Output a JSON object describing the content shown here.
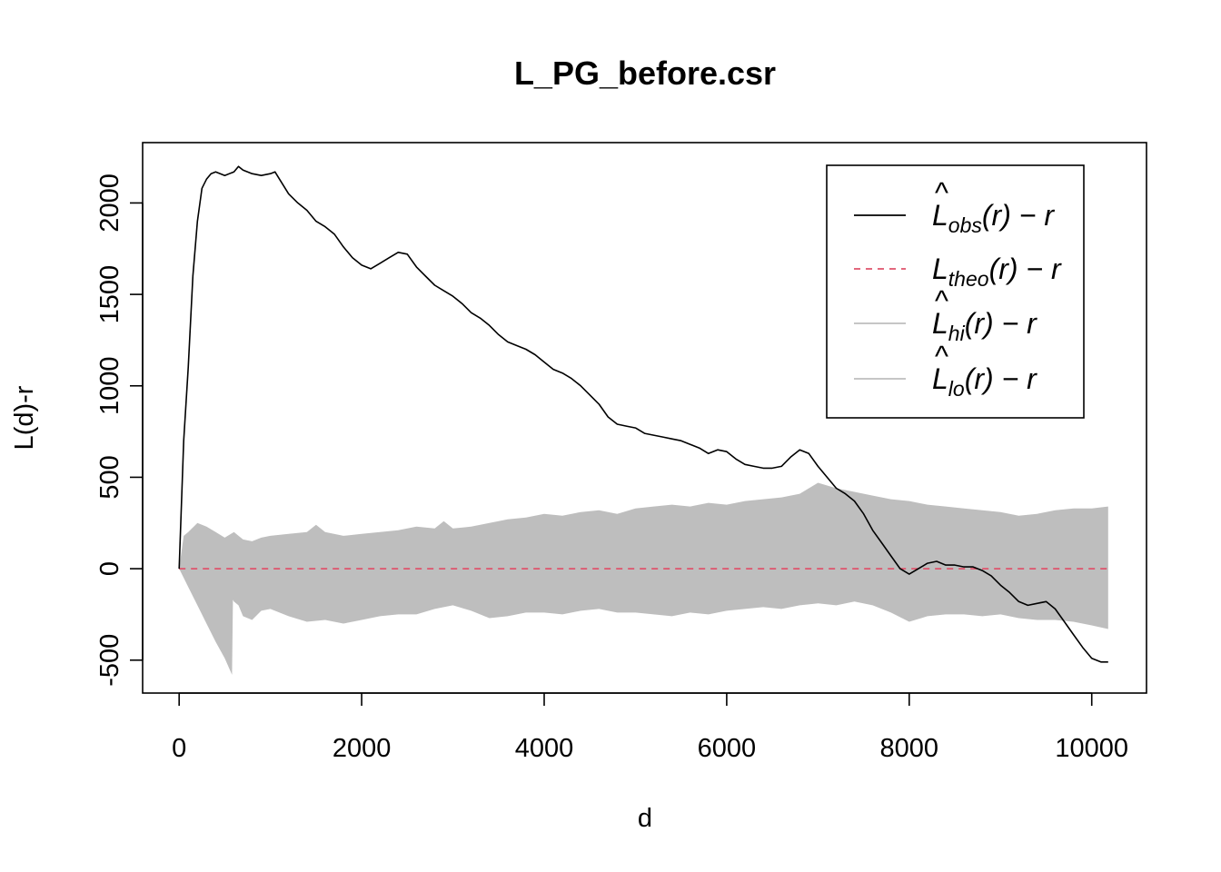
{
  "chart_data": {
    "type": "line",
    "title": "L_PG_before.csr",
    "xlabel": "d",
    "ylabel": "L(d)-r",
    "xlim": [
      -400,
      10600
    ],
    "ylim": [
      -680,
      2330
    ],
    "xticks": [
      0,
      2000,
      4000,
      6000,
      8000,
      10000
    ],
    "xtick_labels": [
      "0",
      "2000",
      "4000",
      "6000",
      "8000",
      "10000"
    ],
    "yticks": [
      -500,
      0,
      500,
      1000,
      1500,
      2000
    ],
    "ytick_labels": [
      "-500",
      "0",
      "500",
      "1000",
      "1500",
      "2000"
    ],
    "grid": false,
    "legend_position": "top-right",
    "legend": [
      {
        "key": "obs",
        "text": "L̂obs(r) − r",
        "color": "#000000",
        "style": "solid"
      },
      {
        "key": "theo",
        "text": "Ltheo(r) − r",
        "color": "#DF536B",
        "style": "dashed"
      },
      {
        "key": "hi",
        "text": "L̂hi(r) − r",
        "color": "#BEBEBE",
        "style": "solid"
      },
      {
        "key": "lo",
        "text": "L̂lo(r) − r",
        "color": "#BEBEBE",
        "style": "solid"
      }
    ],
    "series": [
      {
        "key": "obs",
        "color": "#000000",
        "x": [
          0,
          50,
          100,
          150,
          200,
          250,
          300,
          350,
          400,
          500,
          600,
          650,
          700,
          800,
          900,
          1000,
          1050,
          1100,
          1200,
          1300,
          1400,
          1500,
          1600,
          1700,
          1800,
          1900,
          2000,
          2100,
          2200,
          2300,
          2400,
          2500,
          2600,
          2700,
          2800,
          2900,
          3000,
          3100,
          3200,
          3300,
          3400,
          3500,
          3600,
          3700,
          3800,
          3900,
          4000,
          4100,
          4200,
          4300,
          4400,
          4500,
          4600,
          4700,
          4800,
          4900,
          5000,
          5100,
          5200,
          5300,
          5400,
          5500,
          5600,
          5700,
          5800,
          5900,
          6000,
          6100,
          6200,
          6300,
          6400,
          6500,
          6600,
          6700,
          6800,
          6900,
          7000,
          7100,
          7200,
          7300,
          7400,
          7500,
          7600,
          7700,
          7800,
          7900,
          8000,
          8100,
          8200,
          8300,
          8400,
          8500,
          8600,
          8700,
          8800,
          8900,
          9000,
          9100,
          9200,
          9300,
          9400,
          9500,
          9600,
          9700,
          9800,
          9900,
          10000,
          10100,
          10180
        ],
        "y": [
          0,
          700,
          1100,
          1600,
          1900,
          2080,
          2130,
          2160,
          2170,
          2150,
          2170,
          2200,
          2180,
          2160,
          2150,
          2160,
          2170,
          2130,
          2050,
          2000,
          1960,
          1900,
          1870,
          1830,
          1760,
          1700,
          1660,
          1640,
          1670,
          1700,
          1730,
          1720,
          1650,
          1600,
          1550,
          1520,
          1490,
          1450,
          1400,
          1370,
          1330,
          1280,
          1240,
          1220,
          1200,
          1170,
          1130,
          1090,
          1070,
          1040,
          1000,
          950,
          900,
          830,
          790,
          780,
          770,
          740,
          730,
          720,
          710,
          700,
          680,
          660,
          630,
          650,
          640,
          600,
          570,
          560,
          550,
          550,
          560,
          610,
          650,
          630,
          560,
          500,
          440,
          410,
          370,
          300,
          210,
          140,
          70,
          0,
          -30,
          0,
          30,
          40,
          20,
          20,
          10,
          10,
          -10,
          -40,
          -90,
          -130,
          -180,
          -200,
          -190,
          -180,
          -220,
          -290,
          -360,
          -430,
          -490,
          -510,
          -510
        ]
      },
      {
        "key": "theo",
        "color": "#DF536B",
        "x": [
          0,
          10180
        ],
        "y": [
          0,
          0
        ]
      },
      {
        "key": "hi",
        "color": "#BEBEBE",
        "x": [
          0,
          50,
          100,
          200,
          300,
          400,
          500,
          600,
          700,
          800,
          900,
          1000,
          1200,
          1400,
          1500,
          1600,
          1800,
          2000,
          2200,
          2400,
          2600,
          2800,
          2900,
          3000,
          3200,
          3400,
          3600,
          3800,
          4000,
          4200,
          4400,
          4600,
          4800,
          5000,
          5200,
          5400,
          5600,
          5800,
          6000,
          6200,
          6400,
          6600,
          6800,
          7000,
          7200,
          7400,
          7600,
          7800,
          8000,
          8200,
          8400,
          8600,
          8800,
          9000,
          9200,
          9400,
          9600,
          9800,
          10000,
          10180
        ],
        "y": [
          0,
          180,
          200,
          250,
          230,
          200,
          170,
          200,
          160,
          150,
          170,
          180,
          190,
          200,
          240,
          200,
          180,
          190,
          200,
          210,
          230,
          220,
          260,
          220,
          230,
          250,
          270,
          280,
          300,
          290,
          310,
          320,
          300,
          330,
          340,
          350,
          340,
          360,
          350,
          370,
          380,
          390,
          410,
          470,
          440,
          420,
          400,
          380,
          370,
          350,
          340,
          330,
          320,
          310,
          290,
          300,
          320,
          330,
          330,
          340
        ]
      },
      {
        "key": "lo",
        "color": "#BEBEBE",
        "x": [
          0,
          100,
          200,
          300,
          400,
          500,
          580,
          590,
          600,
          650,
          700,
          800,
          900,
          1000,
          1200,
          1400,
          1600,
          1800,
          2000,
          2200,
          2400,
          2600,
          2800,
          3000,
          3200,
          3400,
          3600,
          3800,
          4000,
          4200,
          4400,
          4600,
          4800,
          5000,
          5200,
          5400,
          5600,
          5800,
          6000,
          6200,
          6400,
          6600,
          6800,
          7000,
          7200,
          7400,
          7600,
          7800,
          8000,
          8200,
          8400,
          8600,
          8800,
          9000,
          9200,
          9400,
          9600,
          9800,
          10000,
          10180
        ],
        "y": [
          0,
          -100,
          -200,
          -300,
          -400,
          -490,
          -580,
          -170,
          -180,
          -200,
          -260,
          -280,
          -230,
          -220,
          -260,
          -290,
          -280,
          -300,
          -280,
          -260,
          -250,
          -250,
          -220,
          -200,
          -230,
          -270,
          -260,
          -240,
          -240,
          -250,
          -230,
          -220,
          -240,
          -240,
          -250,
          -260,
          -240,
          -250,
          -230,
          -220,
          -210,
          -220,
          -200,
          -190,
          -200,
          -180,
          -200,
          -240,
          -290,
          -260,
          -250,
          -250,
          -260,
          -250,
          -270,
          -280,
          -280,
          -290,
          -310,
          -330
        ]
      }
    ]
  }
}
